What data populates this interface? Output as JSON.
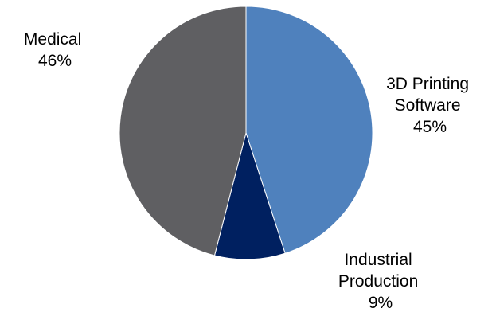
{
  "chart_data": {
    "type": "pie",
    "title": "",
    "legend": "none",
    "slices": [
      {
        "label_lines": [
          "3D Printing",
          "Software"
        ],
        "value": 45,
        "value_label": "45%",
        "color": "#4f81bd"
      },
      {
        "label_lines": [
          "Industrial",
          "Production"
        ],
        "value": 9,
        "value_label": "9%",
        "color": "#002060"
      },
      {
        "label_lines": [
          "Medical"
        ],
        "value": 46,
        "value_label": "46%",
        "color": "#5f5f62"
      }
    ]
  }
}
